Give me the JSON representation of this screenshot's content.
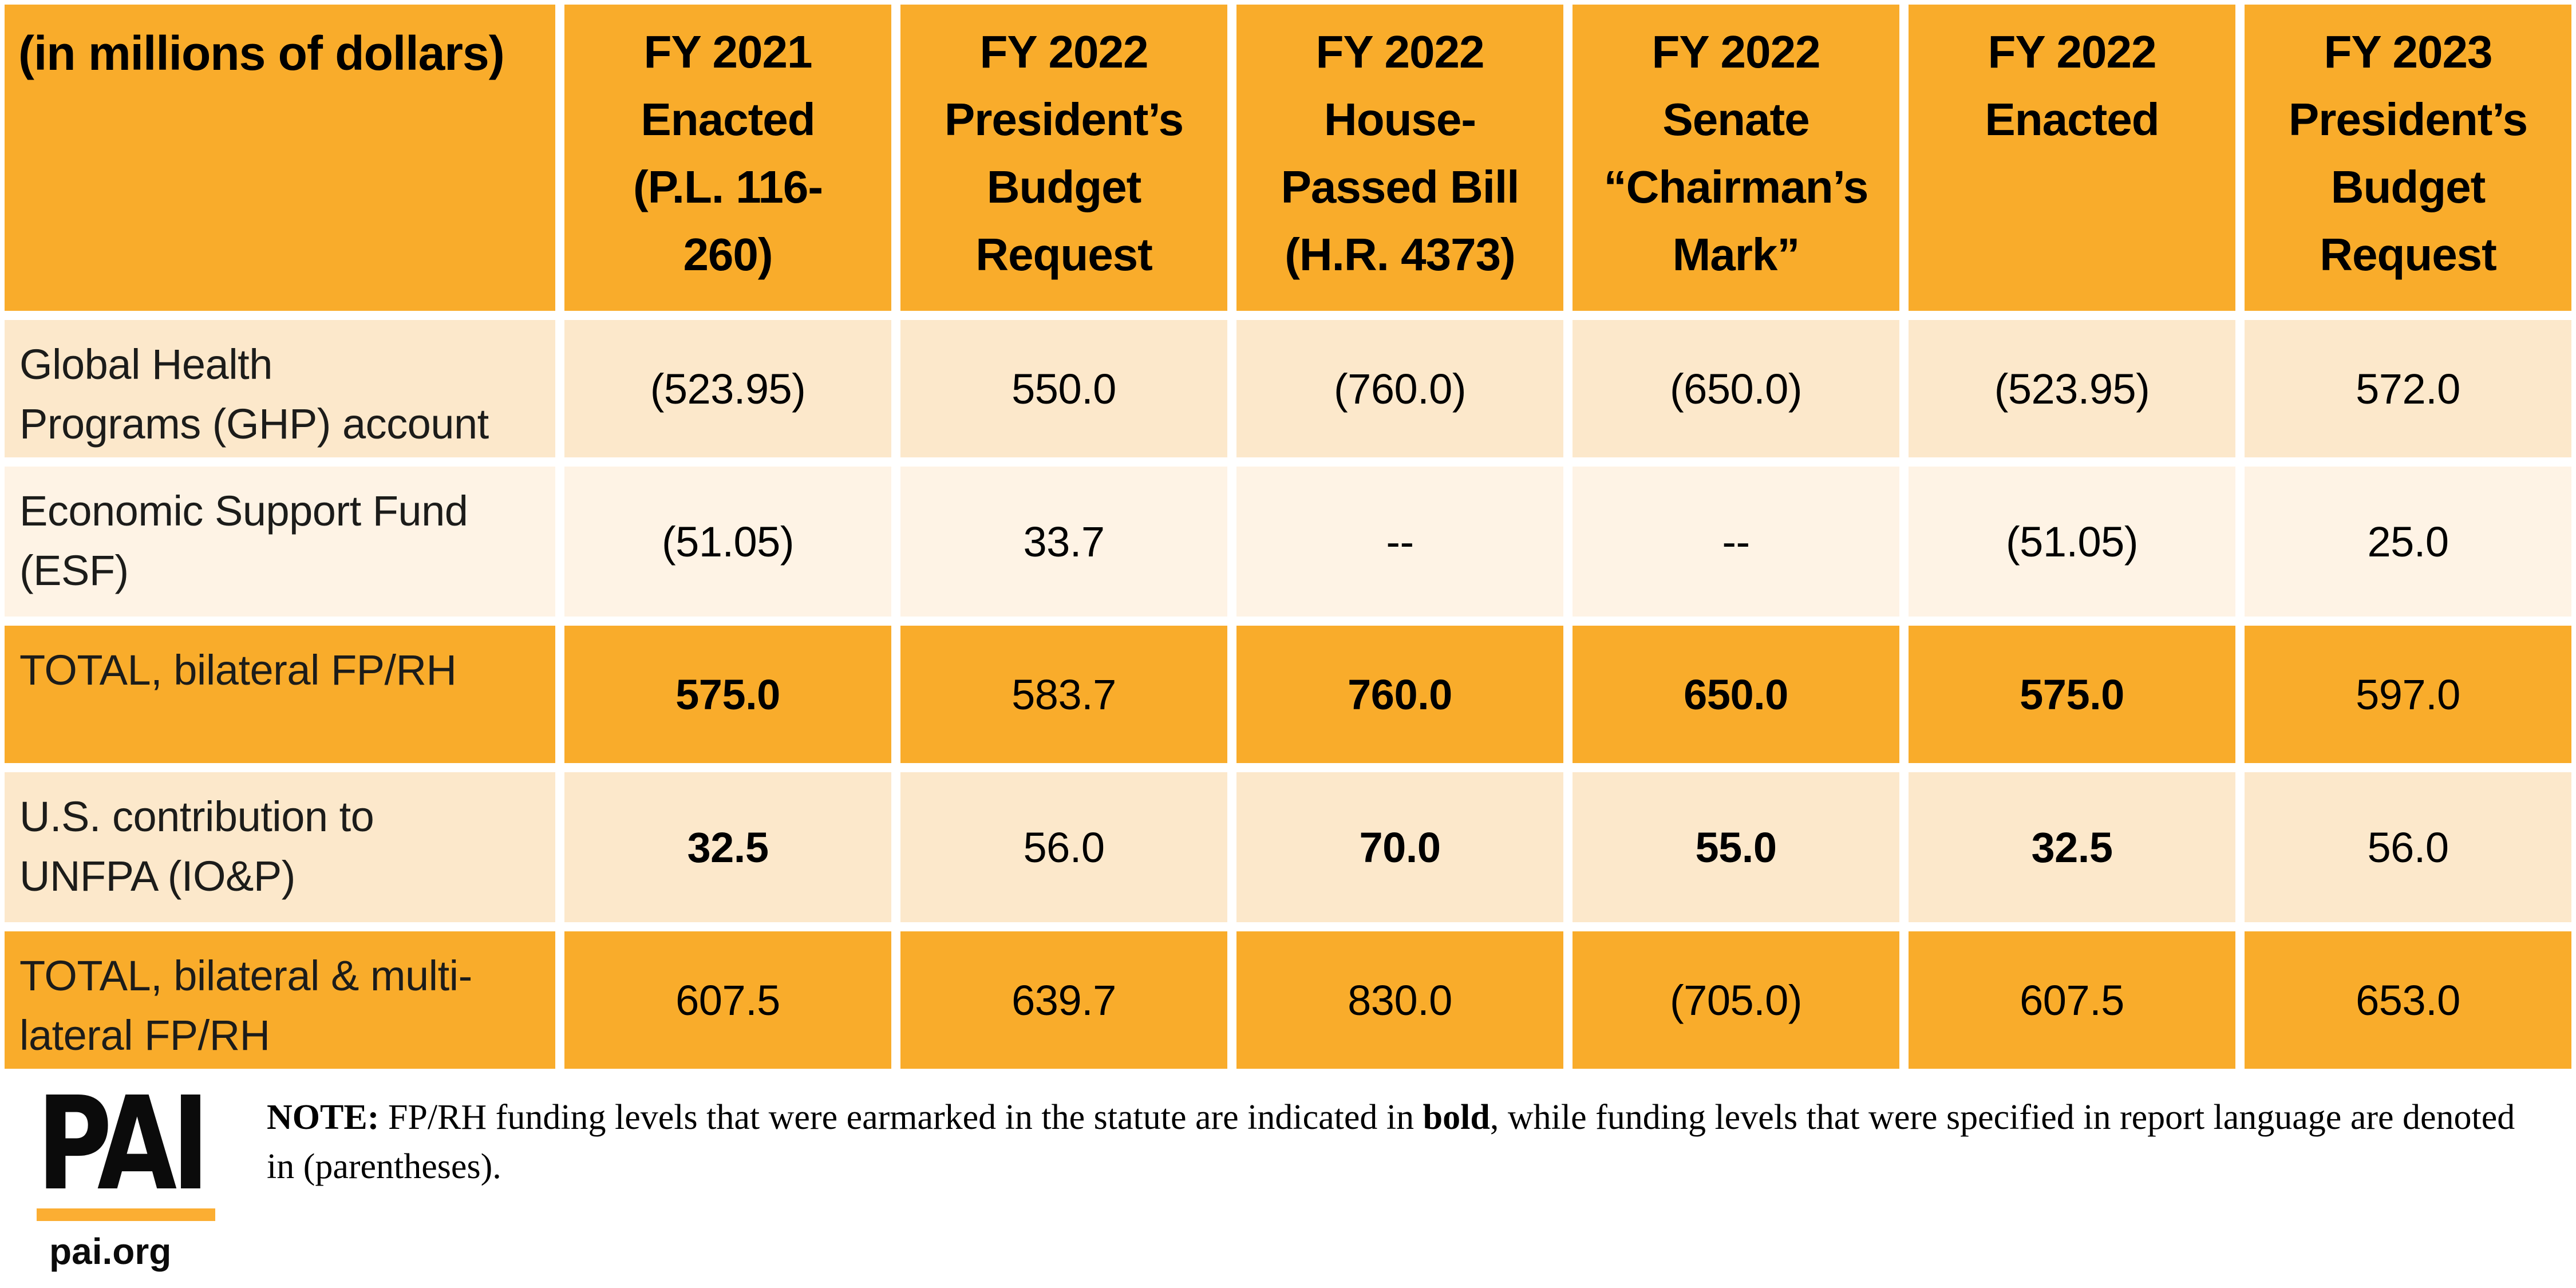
{
  "colors": {
    "orange": "#F9AC2B",
    "cream_dark": "#FCE8CB",
    "cream_light": "#FEF3E5",
    "bar_orange": "#FBAE33"
  },
  "table": {
    "corner_label": "(in millions of dollars)",
    "headers": [
      "FY 2021\nEnacted\n(P.L. 116-\n260)",
      "FY 2022\nPresident’s\nBudget\nRequest",
      "FY 2022\nHouse-\nPassed Bill\n(H.R. 4373)",
      "FY 2022\nSenate\n“Chairman’s\nMark”",
      "FY 2022\nEnacted",
      "FY 2023\nPresident’s\nBudget\nRequest"
    ],
    "rows": [
      {
        "label": "Global Health\nPrograms (GHP) account",
        "values": [
          "(523.95)",
          "550.0",
          "(760.0)",
          "(650.0)",
          "(523.95)",
          "572.0"
        ]
      },
      {
        "label": "Economic Support Fund\n(ESF)",
        "values": [
          "(51.05)",
          "33.7",
          "--",
          "--",
          "(51.05)",
          "25.0"
        ]
      },
      {
        "label": "TOTAL, bilateral FP/RH",
        "values": [
          "575.0",
          "583.7",
          "760.0",
          "650.0",
          "575.0",
          "597.0"
        ]
      },
      {
        "label": "U.S. contribution to\nUNFPA (IO&P)",
        "values": [
          "32.5",
          "56.0",
          "70.0",
          "55.0",
          "32.5",
          "56.0"
        ]
      },
      {
        "label": "TOTAL, bilateral & multi-\nlateral FP/RH",
        "values": [
          "607.5",
          "639.7",
          "830.0",
          "(705.0)",
          "607.5",
          "653.0"
        ]
      }
    ]
  },
  "chart_data": {
    "type": "table",
    "title": "(in millions of dollars)",
    "columns": [
      "FY 2021 Enacted (P.L. 116-260)",
      "FY 2022 President’s Budget Request",
      "FY 2022 House-Passed Bill (H.R. 4373)",
      "FY 2022 Senate “Chairman’s Mark”",
      "FY 2022 Enacted",
      "FY 2023 President’s Budget Request"
    ],
    "rows": [
      {
        "label": "Global Health Programs (GHP) account",
        "values": [
          "(523.95)",
          "550.0",
          "(760.0)",
          "(650.0)",
          "(523.95)",
          "572.0"
        ],
        "bold_mask": [
          false,
          false,
          false,
          false,
          false,
          false
        ]
      },
      {
        "label": "Economic Support Fund (ESF)",
        "values": [
          "(51.05)",
          "33.7",
          "--",
          "--",
          "(51.05)",
          "25.0"
        ],
        "bold_mask": [
          false,
          false,
          false,
          false,
          false,
          false
        ]
      },
      {
        "label": "TOTAL, bilateral FP/RH",
        "values": [
          "575.0",
          "583.7",
          "760.0",
          "650.0",
          "575.0",
          "597.0"
        ],
        "bold_mask": [
          true,
          false,
          true,
          true,
          true,
          false
        ]
      },
      {
        "label": "U.S. contribution to UNFPA (IO&P)",
        "values": [
          "32.5",
          "56.0",
          "70.0",
          "55.0",
          "32.5",
          "56.0"
        ],
        "bold_mask": [
          true,
          false,
          true,
          true,
          true,
          false
        ]
      },
      {
        "label": "TOTAL, bilateral & multilateral FP/RH",
        "values": [
          "607.5",
          "639.7",
          "830.0",
          "(705.0)",
          "607.5",
          "653.0"
        ],
        "bold_mask": [
          false,
          false,
          false,
          false,
          false,
          false
        ]
      }
    ],
    "legend_note": "Bold = earmarked in statute; (parentheses) = specified in report language"
  },
  "footer": {
    "logo_text": "PAI",
    "logo_url": "pai.org",
    "note_prefix": "NOTE:",
    "note_part1": " FP/RH funding levels that were earmarked in the statute are indicated in ",
    "note_bold_word": "bold",
    "note_part2": ", while funding levels that were specified in report language are denoted in (parentheses)."
  }
}
